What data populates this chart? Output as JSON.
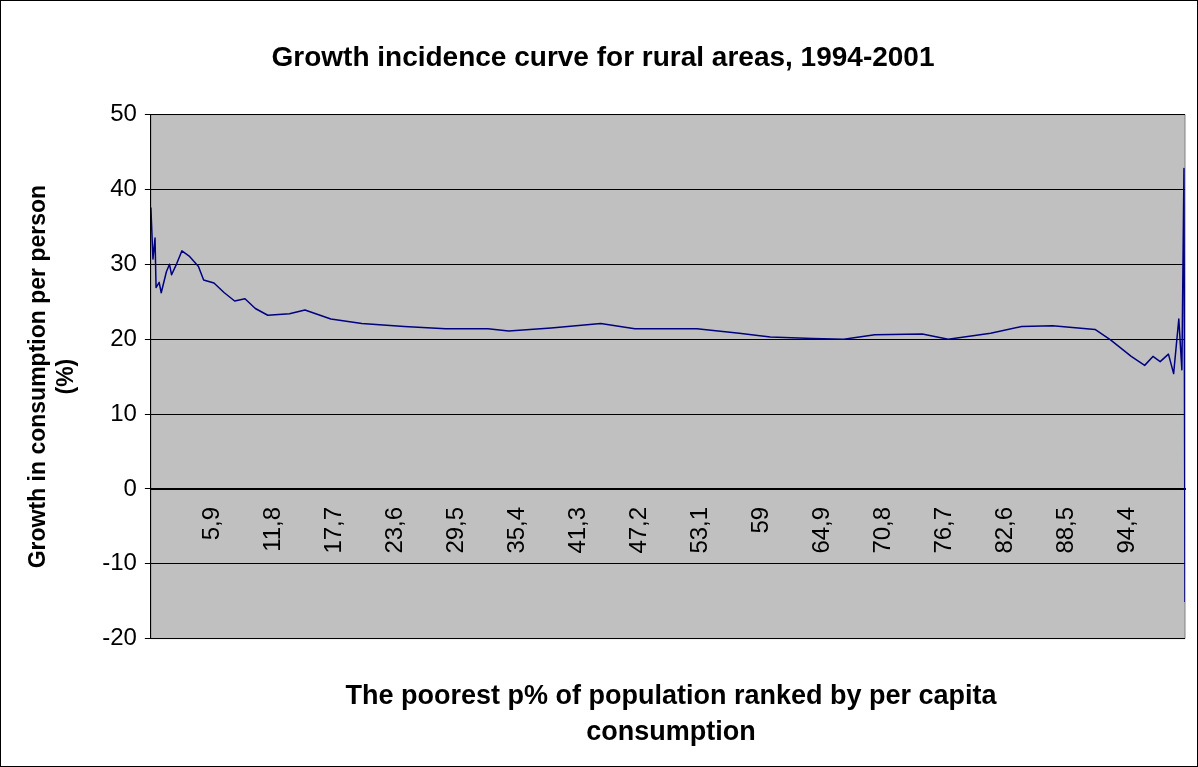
{
  "chart_data": {
    "type": "line",
    "title": "Growth incidence curve for rural areas, 1994-2001",
    "xlabel": "The poorest p% of population ranked by per capita consumption",
    "ylabel": "Growth in consumption per person (%)",
    "x": [
      0,
      0.2,
      0.4,
      0.5,
      0.8,
      1.0,
      1.5,
      1.8,
      2.0,
      2.5,
      3.0,
      3.7,
      4.6,
      5.1,
      6.1,
      7.1,
      8.1,
      9.1,
      10.1,
      11.3,
      13.4,
      14.9,
      17.4,
      20.4,
      24.5,
      28.5,
      32.6,
      34.6,
      38.7,
      43.5,
      46.8,
      52.8,
      56.9,
      59.9,
      64.0,
      67.0,
      70.0,
      74.6,
      77.1,
      81.2,
      84.2,
      87.2,
      91.3,
      92.8,
      94.8,
      96.1,
      96.9,
      97.6,
      98.4,
      98.9,
      99.4,
      99.7,
      99.9,
      100
    ],
    "series": [
      {
        "color": "#000080",
        "values": [
          37.6,
          30.7,
          33.5,
          26.9,
          27.6,
          26.2,
          29.0,
          30.0,
          28.6,
          30.1,
          31.8,
          31.1,
          29.7,
          27.9,
          27.5,
          26.2,
          25.1,
          25.4,
          24.1,
          23.2,
          23.4,
          23.9,
          22.7,
          22.1,
          21.7,
          21.4,
          21.4,
          21.1,
          21.5,
          22.1,
          21.4,
          21.4,
          20.8,
          20.3,
          20.1,
          20.0,
          20.6,
          20.7,
          20.0,
          20.8,
          21.7,
          21.8,
          21.3,
          19.9,
          17.7,
          16.5,
          17.7,
          17.0,
          18.0,
          15.4,
          22.7,
          15.9,
          42.8,
          -15.1
        ]
      }
    ],
    "xlim": [
      0,
      100
    ],
    "xticks": [
      {
        "value": 5.9,
        "label": "5,9"
      },
      {
        "value": 11.8,
        "label": "11,8"
      },
      {
        "value": 17.7,
        "label": "17,7"
      },
      {
        "value": 23.6,
        "label": "23,6"
      },
      {
        "value": 29.5,
        "label": "29,5"
      },
      {
        "value": 35.4,
        "label": "35,4"
      },
      {
        "value": 41.3,
        "label": "41,3"
      },
      {
        "value": 47.2,
        "label": "47,2"
      },
      {
        "value": 53.1,
        "label": "53,1"
      },
      59,
      {
        "value": 64.9,
        "label": "64,9"
      },
      {
        "value": 70.8,
        "label": "70,8"
      },
      {
        "value": 76.7,
        "label": "76,7"
      },
      {
        "value": 82.6,
        "label": "82,6"
      },
      {
        "value": 88.5,
        "label": "88,5"
      },
      {
        "value": 94.4,
        "label": "94,4"
      }
    ],
    "ylim": [
      -20,
      50
    ],
    "yticks": [
      -20,
      -10,
      0,
      10,
      20,
      30,
      40,
      50
    ],
    "grid": "y",
    "legend": false,
    "marker": "none",
    "line_style": "solid"
  }
}
